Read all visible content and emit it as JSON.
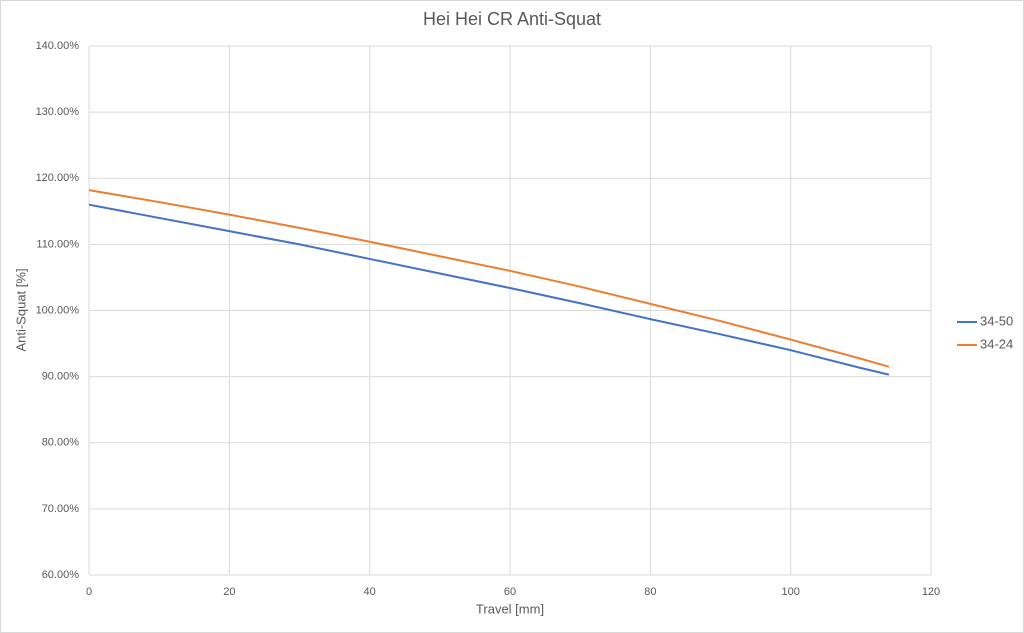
{
  "chart_data": {
    "type": "line",
    "title": "Hei Hei CR Anti-Squat",
    "x_label": "Travel [mm]",
    "y_label": "Anti-Squat [%]",
    "x": [
      0,
      10,
      20,
      30,
      40,
      50,
      60,
      70,
      80,
      90,
      100,
      110,
      114
    ],
    "series": [
      {
        "name": "34-50",
        "color": "#4472c4",
        "values": [
          116.0,
          114.0,
          112.0,
          110.0,
          107.8,
          105.6,
          103.4,
          101.1,
          98.7,
          96.4,
          94.0,
          91.3,
          90.3
        ]
      },
      {
        "name": "34-24",
        "color": "#ed7d31",
        "values": [
          118.2,
          116.4,
          114.5,
          112.5,
          110.4,
          108.2,
          106.0,
          103.6,
          101.0,
          98.4,
          95.6,
          92.7,
          91.5
        ]
      }
    ],
    "xlim": [
      0,
      120
    ],
    "xticks": [
      0,
      20,
      40,
      60,
      80,
      100,
      120
    ],
    "ylim": [
      60,
      140
    ],
    "yticks": [
      {
        "value": 60,
        "label": "60.00%"
      },
      {
        "value": 70,
        "label": "70.00%"
      },
      {
        "value": 80,
        "label": "80.00%"
      },
      {
        "value": 90,
        "label": "90.00%"
      },
      {
        "value": 100,
        "label": "100.00%"
      },
      {
        "value": 110,
        "label": "110.00%"
      },
      {
        "value": 120,
        "label": "120.00%"
      },
      {
        "value": 130,
        "label": "130.00%"
      },
      {
        "value": 140,
        "label": "140.00%"
      }
    ],
    "grid": true,
    "legend": "right"
  }
}
